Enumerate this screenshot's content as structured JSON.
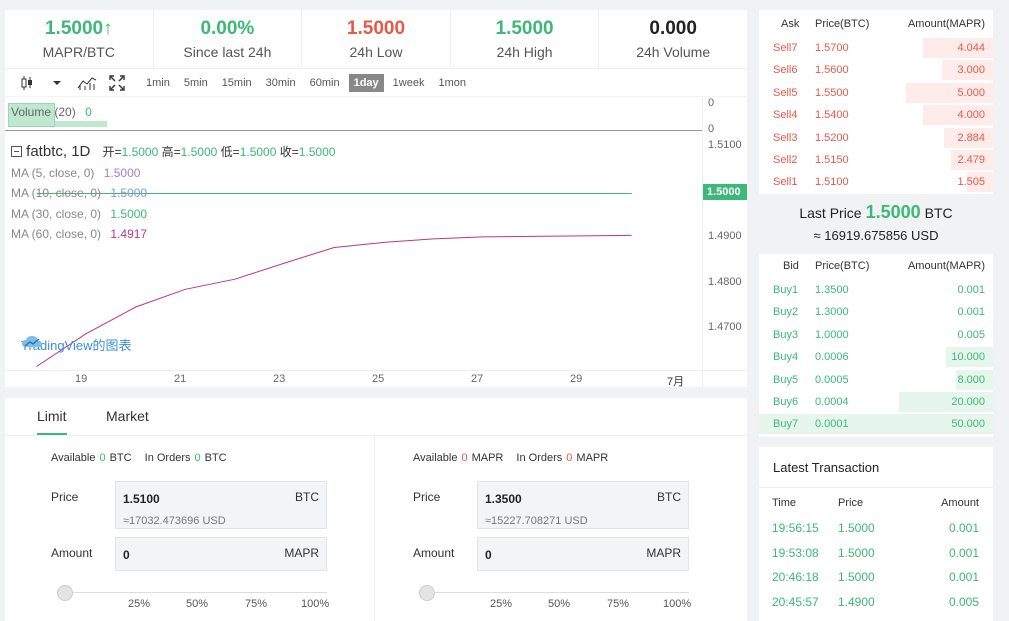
{
  "stats": [
    {
      "value": "1.5000",
      "arrow": "↑",
      "label": "MAPR/BTC",
      "color": "#3cb878"
    },
    {
      "value": "0.00%",
      "label": "Since last 24h",
      "color": "#3cb878"
    },
    {
      "value": "1.5000",
      "label": "24h Low",
      "color": "#e8584a"
    },
    {
      "value": "1.5000",
      "label": "24h High",
      "color": "#3cb878"
    },
    {
      "value": "0.000",
      "label": "24h Volume",
      "color": "#222222"
    }
  ],
  "toolbar": {
    "intervals": [
      "1min",
      "5min",
      "15min",
      "30min",
      "60min",
      "1day",
      "1week",
      "1mon"
    ],
    "active_interval": "1day"
  },
  "chart": {
    "volume_label": "Volume",
    "volume_period": "(20)",
    "volume_value": "0",
    "volume_axis": [
      "0",
      "0"
    ],
    "symbol": "fatbtc, 1D",
    "ohlc": [
      {
        "label": "开=",
        "value": "1.5000"
      },
      {
        "label": "高=",
        "value": "1.5000"
      },
      {
        "label": "低=",
        "value": "1.5000"
      },
      {
        "label": "收=",
        "value": "1.5000"
      }
    ],
    "ma_lines": [
      {
        "label": "MA (5, close, 0)",
        "value": "1.5000",
        "color": "#b07cc6"
      },
      {
        "label": "MA (10, close, 0)",
        "value": "1.5000",
        "color": "#7b9fc7"
      },
      {
        "label": "MA (30, close, 0)",
        "value": "1.5000",
        "color": "#3cb878"
      },
      {
        "label": "MA (60, close, 0)",
        "value": "1.4917",
        "color": "#c2357a"
      }
    ],
    "price_ticks": [
      "1.5100",
      "1.4900",
      "1.4800",
      "1.4700"
    ],
    "current_price_tag": "1.5000",
    "x_ticks": [
      "19",
      "21",
      "23",
      "25",
      "27",
      "29",
      "7月"
    ],
    "watermark": "TradingView的图表"
  },
  "chart_data": {
    "type": "line",
    "x": [
      "18",
      "19",
      "20",
      "21",
      "22",
      "23",
      "24",
      "25",
      "26",
      "27",
      "28",
      "29",
      "30"
    ],
    "ylim": [
      1.465,
      1.512
    ],
    "series": [
      {
        "name": "MA (60, close, 0)",
        "color": "#c2357a",
        "values": [
          1.4657,
          1.4722,
          1.4775,
          1.481,
          1.483,
          1.4862,
          1.4893,
          1.4903,
          1.491,
          1.4914,
          1.4915,
          1.4916,
          1.4917
        ]
      },
      {
        "name": "MA (30, close, 0)",
        "color": "#3cb878",
        "values": [
          1.5,
          1.5,
          1.5,
          1.5,
          1.5,
          1.5,
          1.5,
          1.5,
          1.5,
          1.5,
          1.5,
          1.5,
          1.5
        ]
      }
    ]
  },
  "form": {
    "tabs": [
      "Limit",
      "Market"
    ],
    "buy": {
      "available_label": "Available",
      "available_value": "0",
      "available_unit": "BTC",
      "inorders_label": "In Orders",
      "inorders_value": "0",
      "inorders_unit": "BTC",
      "price_label": "Price",
      "price_value": "1.5100",
      "price_unit": "BTC",
      "price_sub": "≈17032.473696 USD",
      "amount_label": "Amount",
      "amount_value": "0",
      "amount_unit": "MAPR",
      "percents": [
        "25%",
        "50%",
        "75%",
        "100%"
      ]
    },
    "sell": {
      "available_label": "Available",
      "available_value": "0",
      "available_unit": "MAPR",
      "inorders_label": "In Orders",
      "inorders_value": "0",
      "inorders_unit": "MAPR",
      "price_label": "Price",
      "price_value": "1.3500",
      "price_unit": "BTC",
      "price_sub": "≈15227.708271 USD",
      "amount_label": "Amount",
      "amount_value": "0",
      "amount_unit": "MAPR",
      "percents": [
        "25%",
        "50%",
        "75%",
        "100%"
      ]
    }
  },
  "asks": {
    "headers": [
      "Ask",
      "Price(BTC)",
      "Amount(MAPR)"
    ],
    "rows": [
      {
        "label": "Sell7",
        "price": "1.5700",
        "amount": "4.044",
        "depth": 0.3
      },
      {
        "label": "Sell6",
        "price": "1.5600",
        "amount": "3.000",
        "depth": 0.22
      },
      {
        "label": "Sell5",
        "price": "1.5500",
        "amount": "5.000",
        "depth": 0.37
      },
      {
        "label": "Sell4",
        "price": "1.5400",
        "amount": "4.000",
        "depth": 0.3
      },
      {
        "label": "Sell3",
        "price": "1.5200",
        "amount": "2.884",
        "depth": 0.21
      },
      {
        "label": "Sell2",
        "price": "1.5150",
        "amount": "2.479",
        "depth": 0.18
      },
      {
        "label": "Sell1",
        "price": "1.5100",
        "amount": "1.505",
        "depth": 0.11
      }
    ]
  },
  "last_price": {
    "label": "Last Price",
    "value": "1.5000",
    "unit": "BTC",
    "usd": "≈ 16919.675856 USD"
  },
  "bids": {
    "headers": [
      "Bid",
      "Price(BTC)",
      "Amount(MAPR)"
    ],
    "rows": [
      {
        "label": "Buy1",
        "price": "1.3500",
        "amount": "0.001",
        "depth": 0.0
      },
      {
        "label": "Buy2",
        "price": "1.3000",
        "amount": "0.001",
        "depth": 0.0
      },
      {
        "label": "Buy3",
        "price": "1.0000",
        "amount": "0.005",
        "depth": 0.0
      },
      {
        "label": "Buy4",
        "price": "0.0006",
        "amount": "10.000",
        "depth": 0.2
      },
      {
        "label": "Buy5",
        "price": "0.0005",
        "amount": "8.000",
        "depth": 0.16
      },
      {
        "label": "Buy6",
        "price": "0.0004",
        "amount": "20.000",
        "depth": 0.4
      },
      {
        "label": "Buy7",
        "price": "0.0001",
        "amount": "50.000",
        "depth": 1.0
      }
    ]
  },
  "trades": {
    "title": "Latest Transaction",
    "headers": [
      "Time",
      "Price",
      "Amount"
    ],
    "rows": [
      {
        "time": "19:56:15",
        "price": "1.5000",
        "amount": "0.001"
      },
      {
        "time": "19:53:08",
        "price": "1.5000",
        "amount": "0.001"
      },
      {
        "time": "20:46:18",
        "price": "1.5000",
        "amount": "0.001"
      },
      {
        "time": "20:45:57",
        "price": "1.4900",
        "amount": "0.005"
      }
    ]
  }
}
